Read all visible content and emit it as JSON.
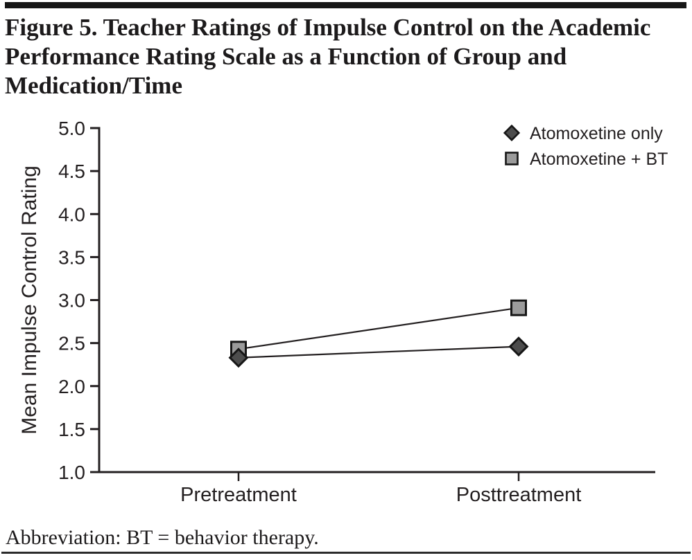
{
  "header": {
    "title_lines": [
      "Figure 5. Teacher Ratings of Impulse Control on the Academic",
      "Performance Rating Scale as a Function of Group and",
      "Medication/Time"
    ]
  },
  "footer": {
    "abbreviation": "Abbreviation: BT = behavior therapy."
  },
  "colors": {
    "text": "#231f20",
    "axis": "#231f20",
    "line": "#231f20",
    "marker_stroke": "#161616",
    "diamond_fill": "#4d4d4d",
    "square_fill": "#9b9b9b",
    "rule": "#161616"
  },
  "chart_data": {
    "type": "line",
    "title": "",
    "xlabel": "",
    "ylabel": "Mean Impulse Control Rating",
    "categories": [
      "Pretreatment",
      "Posttreatment"
    ],
    "series": [
      {
        "name": "Atomoxetine only",
        "marker": "diamond",
        "values": [
          2.33,
          2.46
        ]
      },
      {
        "name": "Atomoxetine + BT",
        "marker": "square",
        "values": [
          2.43,
          2.91
        ]
      }
    ],
    "ylim": [
      1.0,
      5.0
    ],
    "ytick_labels": [
      "5.0",
      "4.5",
      "4.0",
      "3.5",
      "3.0",
      "2.5",
      "2.0",
      "1.5",
      "1.0"
    ],
    "grid": false,
    "legend_position": "top-right"
  }
}
